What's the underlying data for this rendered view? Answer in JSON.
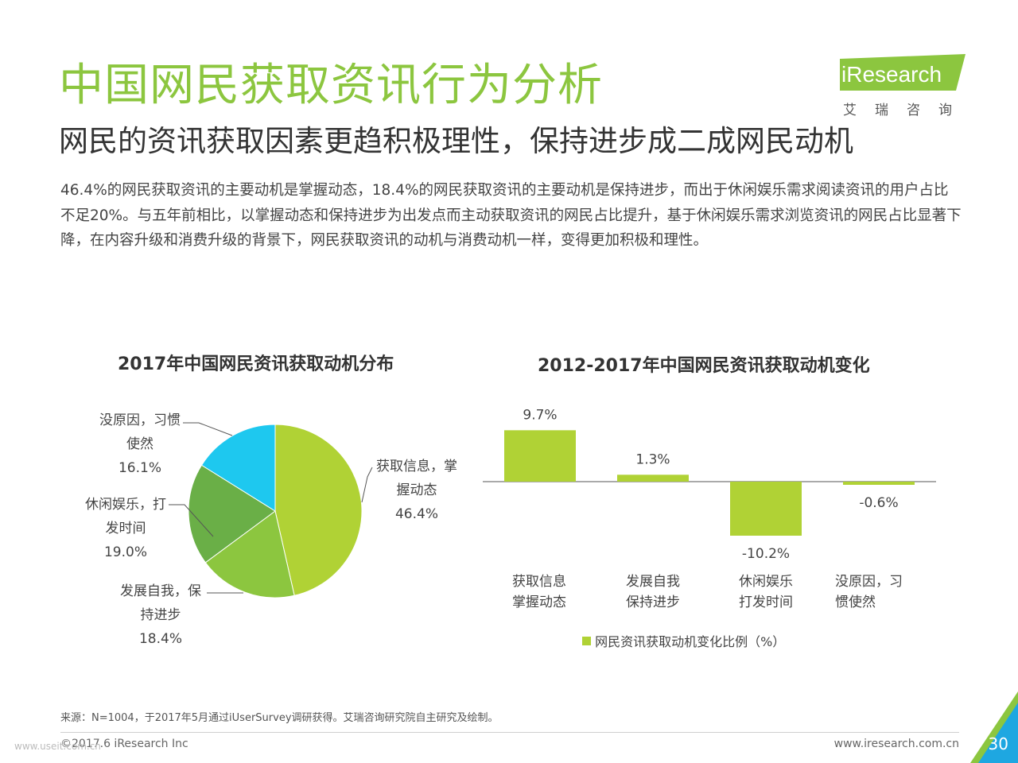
{
  "header": {
    "title": "中国网民获取资讯行为分析",
    "subtitle": "网民的资讯获取因素更趋积极理性，保持进步成二成网民动机",
    "intro": "46.4%的网民获取资讯的主要动机是掌握动态，18.4%的网民获取资讯的主要动机是保持进步，而出于休闲娱乐需求阅读资讯的用户占比不足20%。与五年前相比，以掌握动态和保持进步为出发点而主动获取资讯的网民占比提升，基于休闲娱乐需求浏览资讯的网民占比显著下降，在内容升级和消费升级的背景下，网民获取资讯的动机与消费动机一样，变得更加积极和理性。"
  },
  "logo": {
    "name": "iResearch",
    "cn": "艾瑞咨询"
  },
  "colors": {
    "accent": "#8cc63f",
    "pie_1": "#b0d235",
    "pie_2": "#8cc63f",
    "pie_3": "#6aaf47",
    "pie_4": "#1ec8ef",
    "bar": "#b0d235",
    "corner": "#1ea7e1"
  },
  "chart_data": [
    {
      "type": "pie",
      "title": "2017年中国网民资讯获取动机分布",
      "slices": [
        {
          "label_1": "获取信息，掌",
          "label_2": "握动态",
          "label_3": "46.4%",
          "value": 46.4,
          "color": "#b0d235"
        },
        {
          "label_1": "发展自我，保",
          "label_2": "持进步",
          "label_3": "18.4%",
          "value": 18.4,
          "color": "#8cc63f"
        },
        {
          "label_1": "休闲娱乐，打",
          "label_2": "发时间",
          "label_3": "19.0%",
          "value": 19.0,
          "color": "#6aaf47"
        },
        {
          "label_1": "没原因，习惯",
          "label_2": "使然",
          "label_3": "16.1%",
          "value": 16.1,
          "color": "#1ec8ef"
        }
      ]
    },
    {
      "type": "bar",
      "title": "2012-2017年中国网民资讯获取动机变化",
      "categories": [
        "获取信息掌握动态",
        "发展自我保持进步",
        "休闲娱乐打发时间",
        "没原因，习惯使然"
      ],
      "category_lines": [
        [
          "获取信息",
          "掌握动态"
        ],
        [
          "发展自我",
          "保持进步"
        ],
        [
          "休闲娱乐",
          "打发时间"
        ],
        [
          "没原因，习",
          "惯使然"
        ]
      ],
      "values": [
        9.7,
        1.3,
        -10.2,
        -0.6
      ],
      "value_labels": [
        "9.7%",
        "1.3%",
        "-10.2%",
        "-0.6%"
      ],
      "series": [
        {
          "name": "网民资讯获取动机变化比例（%）",
          "values": [
            9.7,
            1.3,
            -10.2,
            -0.6
          ]
        }
      ],
      "ylim": [
        -10.2,
        9.7
      ]
    }
  ],
  "footer": {
    "source": "来源：N=1004，于2017年5月通过iUserSurvey调研获得。艾瑞咨询研究院自主研究及绘制。",
    "copyright": "©2017.6 iResearch Inc",
    "url": "www.iresearch.com.cn",
    "page": "30",
    "watermark": "www.useit.com.cn"
  }
}
